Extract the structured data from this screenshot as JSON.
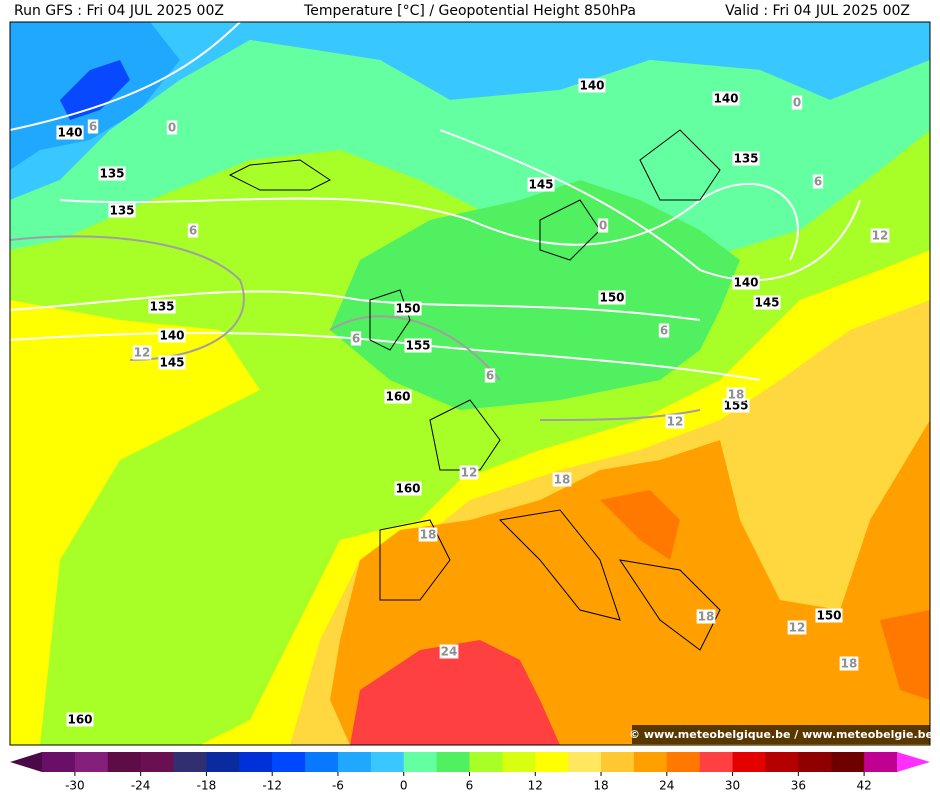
{
  "header": {
    "run": "Run GFS : Fri 04 JUL 2025 00Z",
    "title": "Temperature [°C] / Geopotential Height 850hPa",
    "valid": "Valid : Fri 04 JUL 2025 00Z"
  },
  "height_labels": [
    140,
    135,
    135,
    135,
    140,
    145,
    160,
    150,
    155,
    160,
    160,
    140,
    140,
    145,
    135,
    150,
    140,
    145,
    155,
    150
  ],
  "temperature_labels": [
    6,
    0,
    6,
    12,
    6,
    6,
    0,
    0,
    6,
    12,
    6,
    18,
    12,
    12,
    18,
    18,
    24,
    18,
    12,
    18
  ],
  "colorbar": {
    "range": [
      -33,
      45
    ],
    "ticks": [
      -30,
      -24,
      -18,
      -12,
      -6,
      0,
      6,
      12,
      18,
      24,
      30,
      36,
      42
    ],
    "colors": [
      "#6a0f68",
      "#84207c",
      "#5e0c46",
      "#6a1050",
      "#303070",
      "#0a2aa0",
      "#0030d8",
      "#0048ff",
      "#0878ff",
      "#20a8ff",
      "#38c8ff",
      "#64ffa0",
      "#50f060",
      "#a8ff28",
      "#d8ff10",
      "#ffff00",
      "#ffe860",
      "#ffc830",
      "#ffa000",
      "#ff7800",
      "#ff4040",
      "#e40000",
      "#b40000",
      "#900000",
      "#6e0000",
      "#c00090"
    ],
    "under_color": "#4a0a48",
    "over_color": "#ff30ff"
  },
  "watermark": "© www.meteobelgique.be / www.meteobelgie.be"
}
